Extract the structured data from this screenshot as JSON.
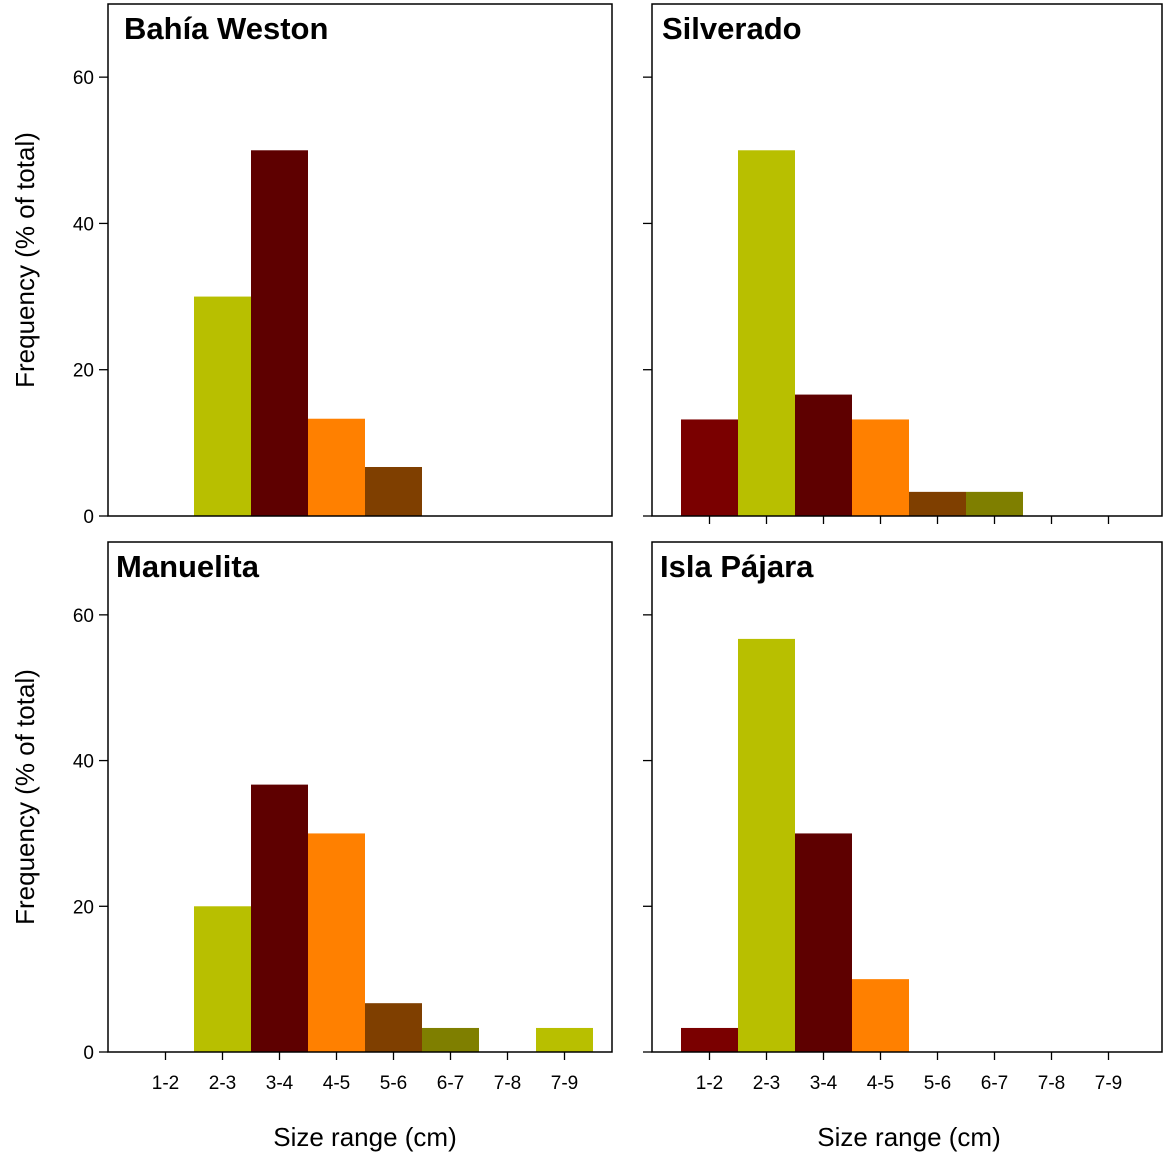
{
  "chart_data": {
    "type": "bar",
    "ylabel": "Frequency (% of total)",
    "xlabel": "Size range (cm)",
    "categories": [
      "1-2",
      "2-3",
      "3-4",
      "4-5",
      "5-6",
      "6-7",
      "7-8",
      "7-9"
    ],
    "ylim": [
      0,
      70
    ],
    "yticks": [
      0,
      20,
      40,
      60
    ],
    "grid": false,
    "category_colors": [
      "#7a0000",
      "#b8bf00",
      "#5e0000",
      "#ff8000",
      "#7f3f00",
      "#7f7f00",
      "#7a0000",
      "#b8bf00"
    ],
    "panels": [
      {
        "title": "Bahía Weston",
        "values": [
          0,
          30,
          50,
          13.3,
          6.7,
          0,
          0,
          0
        ]
      },
      {
        "title": "Silverado",
        "values": [
          13.2,
          50,
          16.6,
          13.2,
          3.3,
          3.3,
          0,
          0
        ]
      },
      {
        "title": "Manuelita",
        "values": [
          0,
          20,
          36.7,
          30,
          6.7,
          3.3,
          0,
          3.3
        ]
      },
      {
        "title": "Isla Pájara",
        "values": [
          3.3,
          56.7,
          30,
          10,
          0,
          0,
          0,
          0
        ]
      }
    ]
  }
}
